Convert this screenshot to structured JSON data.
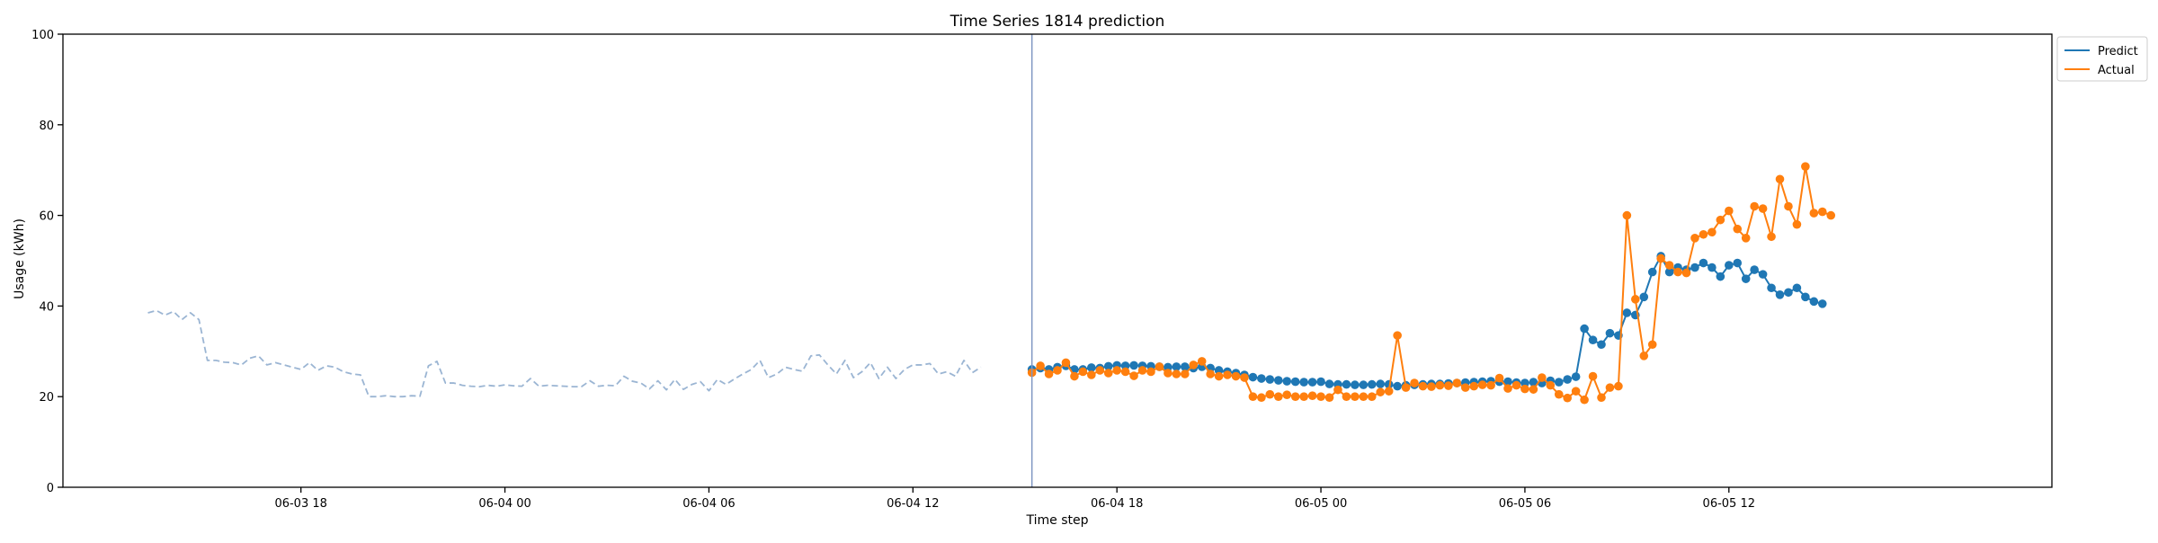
{
  "chart_data": {
    "type": "line",
    "title": "Time Series 1814 prediction",
    "xlabel": "Time step",
    "ylabel": "Usage (kWh)",
    "ylim": [
      0,
      100
    ],
    "yticks": [
      0,
      20,
      40,
      60,
      80,
      100
    ],
    "xlim": [
      "2024-06-03 11:00",
      "2024-06-05 21:30"
    ],
    "xticks": [
      {
        "label": "06-03 18",
        "value": "2024-06-03 18:00"
      },
      {
        "label": "06-04 00",
        "value": "2024-06-04 00:00"
      },
      {
        "label": "06-04 06",
        "value": "2024-06-04 06:00"
      },
      {
        "label": "06-04 12",
        "value": "2024-06-04 12:00"
      },
      {
        "label": "06-04 18",
        "value": "2024-06-04 18:00"
      },
      {
        "label": "06-05 00",
        "value": "2024-06-05 00:00"
      },
      {
        "label": "06-05 06",
        "value": "2024-06-05 06:00"
      },
      {
        "label": "06-05 12",
        "value": "2024-06-05 12:00"
      }
    ],
    "grid": false,
    "legend_position": "outside-top-right",
    "forecast_start": "2024-06-04 15:30",
    "colors": {
      "history": "#9bb5d3",
      "predict": "#1f77b4",
      "actual": "#ff7f0e",
      "divider": "#7f96c2"
    },
    "series": [
      {
        "name": "",
        "role": "history",
        "style": "dashed",
        "x_start": "2024-06-03 13:30",
        "x_step_minutes": 15,
        "values": [
          38.5,
          39,
          38,
          38.8,
          37,
          38.5,
          37,
          28,
          28,
          27.6,
          27.5,
          27,
          28.5,
          29,
          27,
          27.5,
          27,
          26.5,
          26,
          27.5,
          25.8,
          26.8,
          26.5,
          25.5,
          25,
          24.8,
          20,
          20,
          20.2,
          20,
          20,
          20.2,
          20.1,
          26.8,
          27.8,
          23,
          23,
          22.5,
          22.3,
          22.2,
          22.5,
          22.3,
          22.6,
          22.4,
          22.3,
          24,
          22.3,
          22.5,
          22.4,
          22.3,
          22.2,
          22.2,
          23.5,
          22.3,
          22.5,
          22.4,
          24.5,
          23.4,
          23,
          21.7,
          23.5,
          21.5,
          23.8,
          21.6,
          22.7,
          23.3,
          21.3,
          23.8,
          22.7,
          23.9,
          25,
          26,
          28,
          24.2,
          25,
          26.5,
          26,
          25.6,
          29,
          29.2,
          27,
          25,
          28,
          24.2,
          25.5,
          27.5,
          24,
          26.5,
          24,
          26,
          27,
          27,
          27.3,
          25,
          25.5,
          24.5,
          28,
          25.3,
          26.5
        ]
      },
      {
        "name": "Predict",
        "role": "predict",
        "style": "solid-markers",
        "x_start": "2024-06-04 15:30",
        "x_step_minutes": 15,
        "values": [
          26,
          26.3,
          26,
          26.5,
          26.8,
          26,
          26,
          26.4,
          26.3,
          26.7,
          26.9,
          26.8,
          26.9,
          26.8,
          26.7,
          26.6,
          26.5,
          26.6,
          26.6,
          26.3,
          26.6,
          26.3,
          25.8,
          25.5,
          25.2,
          24.8,
          24.3,
          24,
          23.8,
          23.6,
          23.4,
          23.3,
          23.2,
          23.2,
          23.3,
          22.8,
          22.7,
          22.7,
          22.6,
          22.6,
          22.7,
          22.8,
          22.7,
          22.3,
          22.5,
          22.6,
          22.7,
          22.8,
          22.8,
          22.9,
          23,
          23.1,
          23.2,
          23.3,
          23.4,
          23.3,
          23.3,
          23.1,
          23,
          23.2,
          23,
          23.5,
          23.2,
          23.8,
          24.4,
          35,
          32.5,
          31.5,
          34,
          33.5,
          38.5,
          38,
          42,
          47.5,
          51,
          47.5,
          48.5,
          48,
          48.5,
          49.5,
          48.5,
          46.5,
          49,
          49.5,
          46,
          48,
          47,
          44,
          42.5,
          43,
          44,
          42,
          41,
          40.5
        ]
      },
      {
        "name": "Actual",
        "role": "actual",
        "style": "solid-markers",
        "x_start": "2024-06-04 15:30",
        "x_step_minutes": 15,
        "values": [
          25.3,
          26.8,
          25,
          25.8,
          27.5,
          24.5,
          25.5,
          24.8,
          25.8,
          25.2,
          25.8,
          25.5,
          24.6,
          25.8,
          25.5,
          26.6,
          25.2,
          25,
          25,
          27,
          27.8,
          25,
          24.5,
          24.8,
          24.5,
          24.2,
          20,
          19.8,
          20.5,
          20,
          20.4,
          20,
          20,
          20.2,
          20,
          19.8,
          21.5,
          20,
          20,
          20,
          20,
          21,
          21.2,
          33.5,
          22,
          23,
          22.3,
          22.2,
          22.5,
          22.4,
          23,
          22,
          22.3,
          22.6,
          22.5,
          24.1,
          21.8,
          22.5,
          21.7,
          21.6,
          24.2,
          22.5,
          20.5,
          19.7,
          21.2,
          19.3,
          24.5,
          19.8,
          22,
          22.3,
          60,
          41.5,
          29,
          31.5,
          50.5,
          49,
          47.5,
          47.3,
          55,
          55.8,
          56.3,
          59,
          61,
          57,
          55,
          62,
          61.5,
          55.3,
          68,
          62,
          58,
          70.8,
          60.5,
          60.8,
          60
        ]
      }
    ]
  }
}
